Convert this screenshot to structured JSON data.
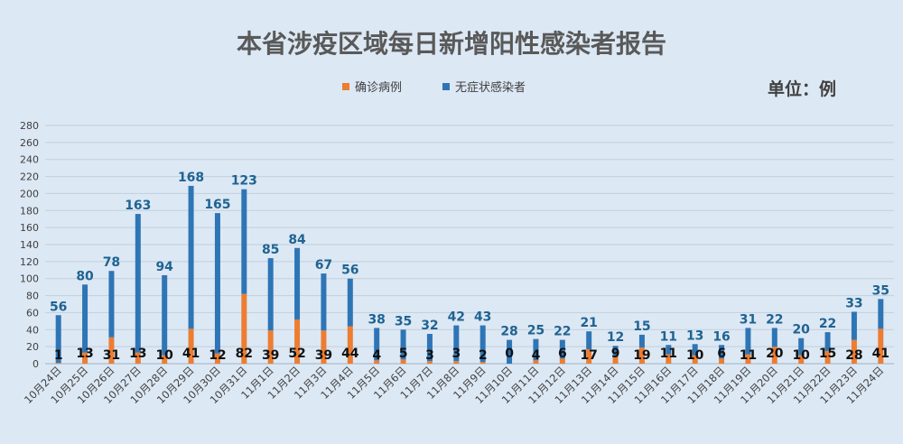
{
  "chart_data": {
    "type": "bar",
    "stacked": true,
    "title": "本省涉疫区域每日新增阳性感染者报告",
    "unit_label": "单位：例",
    "legend_placement": "top-center",
    "grid": true,
    "ylim": [
      0,
      280
    ],
    "yticks": [
      0,
      20,
      40,
      60,
      80,
      100,
      120,
      140,
      160,
      180,
      200,
      220,
      240,
      260,
      280
    ],
    "categories": [
      "10月24日",
      "10月25日",
      "10月26日",
      "10月27日",
      "10月28日",
      "10月29日",
      "10月30日",
      "10月31日",
      "11月1日",
      "11月2日",
      "11月3日",
      "11月4日",
      "11月5日",
      "11月6日",
      "11月7日",
      "11月8日",
      "11月9日",
      "11月10日",
      "11月11日",
      "11月12日",
      "11月13日",
      "11月14日",
      "11月15日",
      "11月16日",
      "11月17日",
      "11月18日",
      "11月19日",
      "11月20日",
      "11月21日",
      "11月22日",
      "11月23日",
      "11月24日"
    ],
    "series": [
      {
        "name": "确诊病例",
        "color": "#ed7d31",
        "values": [
          1,
          13,
          31,
          13,
          10,
          41,
          12,
          82,
          39,
          52,
          39,
          44,
          4,
          5,
          3,
          3,
          2,
          0,
          4,
          6,
          17,
          9,
          19,
          11,
          10,
          6,
          11,
          20,
          10,
          15,
          28,
          41
        ]
      },
      {
        "name": "无症状感染者",
        "color": "#2e75b6",
        "values": [
          56,
          80,
          78,
          163,
          94,
          168,
          165,
          123,
          85,
          84,
          67,
          56,
          38,
          35,
          32,
          42,
          43,
          28,
          25,
          22,
          21,
          12,
          15,
          11,
          13,
          16,
          31,
          22,
          20,
          22,
          33,
          35
        ]
      }
    ]
  }
}
